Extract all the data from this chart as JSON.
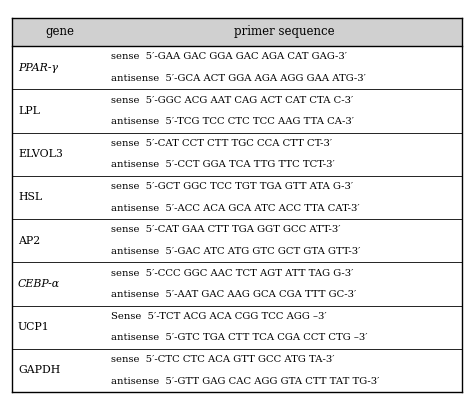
{
  "col_headers": [
    "gene",
    "primer sequence"
  ],
  "header_bg": "#d0d0d0",
  "border_color": "#000000",
  "rows": [
    {
      "gene": "PPAR-γ",
      "gene_italic": true,
      "sequences": [
        "sense  5′-GAA GAC GGA GAC AGA CAT GAG-3′",
        "antisense  5′-GCA ACT GGA AGA AGG GAA ATG-3′"
      ]
    },
    {
      "gene": "LPL",
      "gene_italic": false,
      "sequences": [
        "sense  5′-GGC ACG AAT CAG ACT CAT CTA C-3′",
        "antisense  5′-TCG TCC CTC TCC AAG TTA CA-3′"
      ]
    },
    {
      "gene": "ELVOL3",
      "gene_italic": false,
      "sequences": [
        "sense  5′-CAT CCT CTT TGC CCA CTT CT-3′",
        "antisense  5′-CCT GGA TCA TTG TTC TCT-3′"
      ]
    },
    {
      "gene": "HSL",
      "gene_italic": false,
      "sequences": [
        "sense  5′-GCT GGC TCC TGT TGA GTT ATA G-3′",
        "antisense  5′-ACC ACA GCA ATC ACC TTA CAT-3′"
      ]
    },
    {
      "gene": "AP2",
      "gene_italic": false,
      "sequences": [
        "sense  5′-CAT GAA CTT TGA GGT GCC ATT-3′",
        "antisense  5′-GAC ATC ATG GTC GCT GTA GTT-3′"
      ]
    },
    {
      "gene": "CEBP-α",
      "gene_italic": true,
      "sequences": [
        "sense  5′-CCC GGC AAC TCT AGT ATT TAG G-3′",
        "antisense  5′-AAT GAC AAG GCA CGA TTT GC-3′"
      ]
    },
    {
      "gene": "UCP1",
      "gene_italic": false,
      "sequences": [
        "Sense  5′-TCT ACG ACA CGG TCC AGG –3′",
        "antisense  5′-GTC TGA CTT TCA CGA CCT CTG –3′"
      ]
    },
    {
      "gene": "GAPDH",
      "gene_italic": false,
      "sequences": [
        "sense  5′-CTC CTC ACA GTT GCC ATG TA-3′",
        "antisense  5′-GTT GAG CAC AGG GTA CTT TAT TG-3′"
      ]
    }
  ],
  "font_size": 7.2,
  "gene_font_size": 7.8,
  "header_font_size": 8.5,
  "fig_width": 4.74,
  "fig_height": 3.97,
  "dpi": 100
}
